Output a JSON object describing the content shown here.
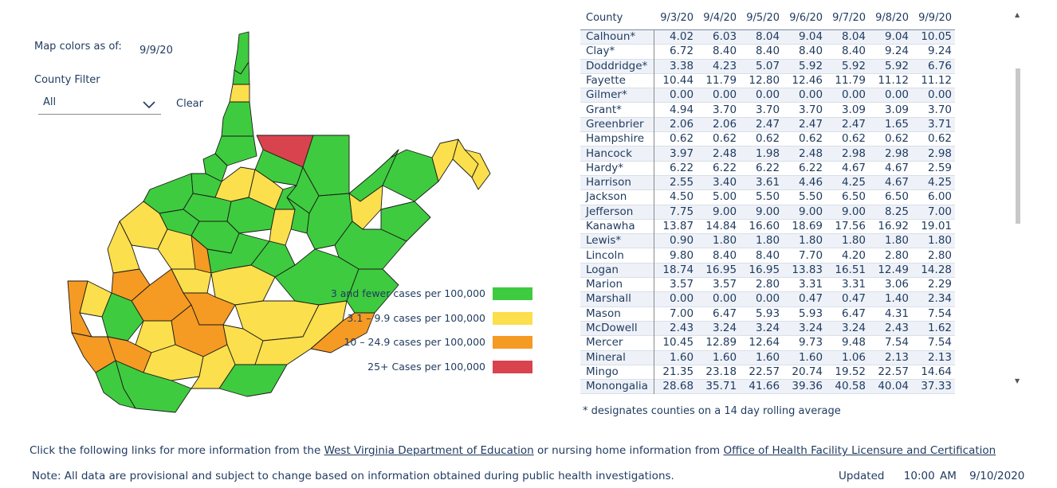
{
  "map_controls": {
    "asof_label": "Map colors as of:",
    "asof_value": "9/9/20",
    "filter_label": "County Filter",
    "filter_value": "All",
    "clear_label": "Clear"
  },
  "colors": {
    "green": "#3fcb3f",
    "yellow": "#fbdf4c",
    "orange": "#f59a23",
    "red": "#d9434e"
  },
  "legend": [
    {
      "label": "3 and fewer cases per 100,000",
      "color": "#3fcb3f"
    },
    {
      "label": "3.1 – 9.9 cases per 100,000",
      "color": "#fbdf4c"
    },
    {
      "label": "10 – 24.9 cases per 100,000",
      "color": "#f59a23"
    },
    {
      "label": "25+ Cases per 100,000",
      "color": "#d9434e"
    }
  ],
  "table": {
    "headers": [
      "County",
      "9/3/20",
      "9/4/20",
      "9/5/20",
      "9/6/20",
      "9/7/20",
      "9/8/20",
      "9/9/20"
    ],
    "rows": [
      [
        "Calhoun*",
        "4.02",
        "6.03",
        "8.04",
        "9.04",
        "8.04",
        "9.04",
        "10.05"
      ],
      [
        "Clay*",
        "6.72",
        "8.40",
        "8.40",
        "8.40",
        "8.40",
        "9.24",
        "9.24"
      ],
      [
        "Doddridge*",
        "3.38",
        "4.23",
        "5.07",
        "5.92",
        "5.92",
        "5.92",
        "6.76"
      ],
      [
        "Fayette",
        "10.44",
        "11.79",
        "12.80",
        "12.46",
        "11.79",
        "11.12",
        "11.12"
      ],
      [
        "Gilmer*",
        "0.00",
        "0.00",
        "0.00",
        "0.00",
        "0.00",
        "0.00",
        "0.00"
      ],
      [
        "Grant*",
        "4.94",
        "3.70",
        "3.70",
        "3.70",
        "3.09",
        "3.09",
        "3.70"
      ],
      [
        "Greenbrier",
        "2.06",
        "2.06",
        "2.47",
        "2.47",
        "2.47",
        "1.65",
        "3.71"
      ],
      [
        "Hampshire",
        "0.62",
        "0.62",
        "0.62",
        "0.62",
        "0.62",
        "0.62",
        "0.62"
      ],
      [
        "Hancock",
        "3.97",
        "2.48",
        "1.98",
        "2.48",
        "2.98",
        "2.98",
        "2.98"
      ],
      [
        "Hardy*",
        "6.22",
        "6.22",
        "6.22",
        "6.22",
        "4.67",
        "4.67",
        "2.59"
      ],
      [
        "Harrison",
        "2.55",
        "3.40",
        "3.61",
        "4.46",
        "4.25",
        "4.67",
        "4.25"
      ],
      [
        "Jackson",
        "4.50",
        "5.00",
        "5.50",
        "5.50",
        "6.50",
        "6.50",
        "6.00"
      ],
      [
        "Jefferson",
        "7.75",
        "9.00",
        "9.00",
        "9.00",
        "9.00",
        "8.25",
        "7.00"
      ],
      [
        "Kanawha",
        "13.87",
        "14.84",
        "16.60",
        "18.69",
        "17.56",
        "16.92",
        "19.01"
      ],
      [
        "Lewis*",
        "0.90",
        "1.80",
        "1.80",
        "1.80",
        "1.80",
        "1.80",
        "1.80"
      ],
      [
        "Lincoln",
        "9.80",
        "8.40",
        "8.40",
        "7.70",
        "4.20",
        "2.80",
        "2.80"
      ],
      [
        "Logan",
        "18.74",
        "16.95",
        "16.95",
        "13.83",
        "16.51",
        "12.49",
        "14.28"
      ],
      [
        "Marion",
        "3.57",
        "3.57",
        "2.80",
        "3.31",
        "3.31",
        "3.06",
        "2.29"
      ],
      [
        "Marshall",
        "0.00",
        "0.00",
        "0.00",
        "0.47",
        "0.47",
        "1.40",
        "2.34"
      ],
      [
        "Mason",
        "7.00",
        "6.47",
        "5.93",
        "5.93",
        "6.47",
        "4.31",
        "7.54"
      ],
      [
        "McDowell",
        "2.43",
        "3.24",
        "3.24",
        "3.24",
        "3.24",
        "2.43",
        "1.62"
      ],
      [
        "Mercer",
        "10.45",
        "12.89",
        "12.64",
        "9.73",
        "9.48",
        "7.54",
        "7.54"
      ],
      [
        "Mineral",
        "1.60",
        "1.60",
        "1.60",
        "1.60",
        "1.06",
        "2.13",
        "2.13"
      ],
      [
        "Mingo",
        "21.35",
        "23.18",
        "22.57",
        "20.74",
        "19.52",
        "22.57",
        "14.64"
      ],
      [
        "Monongalia",
        "28.68",
        "35.71",
        "41.66",
        "39.36",
        "40.58",
        "40.04",
        "37.33"
      ]
    ]
  },
  "footnote": "* designates counties on a 14 day rolling average",
  "links": {
    "prefix": "Click the following links for more information from the ",
    "link1": "West Virginia Department of Education",
    "middle": " or nursing home information from ",
    "link2": "Office of Health Facility Licensure and Certification"
  },
  "note": "Note: All data are provisional and subject to change based on information obtained during public health investigations.",
  "updated": {
    "label": "Updated",
    "time": "10:00 AM",
    "date": "9/10/2020"
  }
}
